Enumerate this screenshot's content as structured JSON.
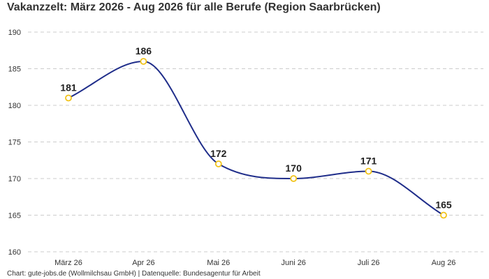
{
  "title": "Vakanzzelt: März 2026 - Aug 2026 für alle Berufe (Region Saarbrücken)",
  "footer": "Chart: gute-jobs.de (Wollmilchsau GmbH) | Datenquelle: Bundesagentur für Arbeit",
  "colors": {
    "line": "#1f2d8a",
    "marker": "#f2c318",
    "grid": "#cccccc"
  },
  "chart_data": {
    "type": "line",
    "title": "Vakanzzelt: März 2026 - Aug 2026 für alle Berufe (Region Saarbrücken)",
    "categories": [
      "März 26",
      "Apr 26",
      "Mai 26",
      "Juni 26",
      "Juli 26",
      "Aug 26"
    ],
    "values": [
      181,
      186,
      172,
      170,
      171,
      165
    ],
    "data_labels": [
      "181",
      "186",
      "172",
      "170",
      "171",
      "165"
    ],
    "ylim": [
      160,
      190
    ],
    "yticks": [
      "160",
      "165",
      "170",
      "175",
      "180",
      "185",
      "190"
    ],
    "xlabel": "",
    "ylabel": "",
    "grid": true,
    "curve": "smooth"
  }
}
